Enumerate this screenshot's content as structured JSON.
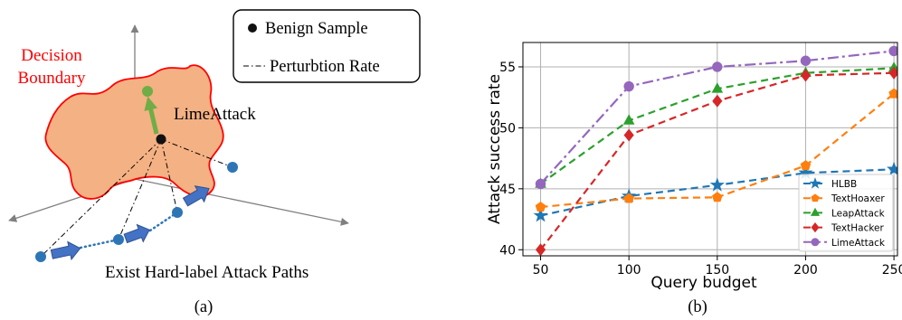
{
  "panel_a": {
    "caption": "(a)",
    "legend_items": [
      "Benign Sample",
      "Perturbtion Rate"
    ],
    "region_label_lines": [
      "Decision",
      "Boundary"
    ],
    "method_label": "LimeAttack",
    "paths_label": "Exist Hard-label Attack Paths",
    "colors": {
      "boundary_fill": "#f4b183",
      "boundary_stroke": "#ff0000",
      "point_blue": "#2e75b6",
      "point_green": "#70ad47",
      "arrow_blue": "#4472c4",
      "label_red": "#ff0000"
    }
  },
  "panel_b": {
    "caption": "(b)"
  },
  "chart_data": {
    "type": "line",
    "xlabel": "Query budget",
    "ylabel": "Attack success rate",
    "x": [
      50,
      100,
      150,
      200,
      250
    ],
    "x_tick_labels": [
      "50",
      "100",
      "150",
      "200",
      "250"
    ],
    "y_ticks": [
      40,
      45,
      50,
      55
    ],
    "xlim": [
      40,
      252
    ],
    "ylim": [
      39.5,
      57
    ],
    "grid": true,
    "legend_placement": "lower-right",
    "series": [
      {
        "name": "HLBB",
        "values": [
          42.8,
          44.4,
          45.3,
          46.3,
          46.6
        ],
        "color": "#1f77b4",
        "marker": "star",
        "dash": "8,5"
      },
      {
        "name": "TextHoaxer",
        "values": [
          43.5,
          44.2,
          44.3,
          46.9,
          52.8
        ],
        "color": "#ff7f0e",
        "marker": "pentagon",
        "dash": "8,5"
      },
      {
        "name": "LeapAttack",
        "values": [
          45.4,
          50.6,
          53.2,
          54.5,
          54.9
        ],
        "color": "#2ca02c",
        "marker": "triangle",
        "dash": "8,5"
      },
      {
        "name": "TextHacker",
        "values": [
          40.0,
          49.4,
          52.2,
          54.3,
          54.5
        ],
        "color": "#d62728",
        "marker": "diamond",
        "dash": "8,5"
      },
      {
        "name": "LimeAttack",
        "values": [
          45.4,
          53.4,
          55.0,
          55.5,
          56.3
        ],
        "color": "#9467bd",
        "marker": "circle",
        "dash": "12,4,3,4"
      }
    ]
  }
}
